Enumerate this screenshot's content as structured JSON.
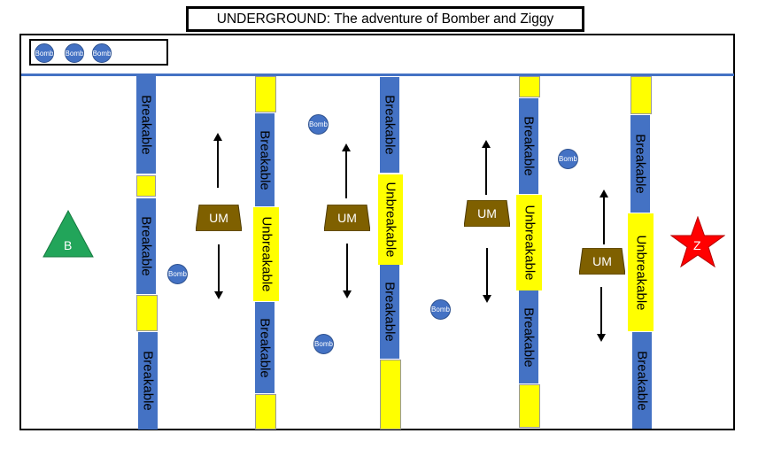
{
  "title": "UNDERGROUND: The adventure of Bomber and Ziggy",
  "hud": {
    "bombs": [
      "Bomb",
      "Bomb",
      "Bomb"
    ]
  },
  "labels": {
    "breakable": "Breakable",
    "unbreakable": "Unbreakable",
    "enemy": "UM",
    "bomb": "Bomb"
  },
  "bomber": {
    "label": "B",
    "color": "#22a55a"
  },
  "ziggy": {
    "label": "Z",
    "color": "#ff0000"
  },
  "colors": {
    "breakable": "#4472c4",
    "unbreakable": "#ffff00",
    "enemy": "#7f6000"
  }
}
